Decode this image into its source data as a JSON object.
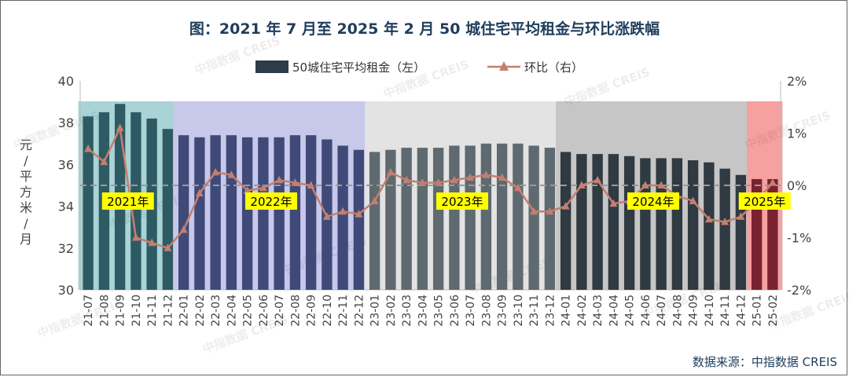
{
  "chart_data": {
    "type": "bar+line",
    "title": "图：2021 年 7 月至 2025 年 2 月 50 城住宅平均租金与环比涨跌幅",
    "source": "数据来源：中指数据 CREIS",
    "watermark": "中指数据 CREIS",
    "ylabel_left": "元/平方米/月",
    "ylim_left": [
      30,
      40
    ],
    "yticks_left": [
      "30",
      "32",
      "34",
      "36",
      "38",
      "40"
    ],
    "ylim_right": [
      -2,
      2
    ],
    "yticks_right": [
      "-2%",
      "-1%",
      "0%",
      "1%",
      "2%"
    ],
    "legend": {
      "position": "top-center"
    },
    "categories": [
      "21-07",
      "21-08",
      "21-09",
      "21-10",
      "21-11",
      "21-12",
      "22-01",
      "22-02",
      "22-03",
      "22-04",
      "22-05",
      "22-06",
      "22-07",
      "22-08",
      "22-09",
      "22-10",
      "22-11",
      "22-12",
      "23-01",
      "23-02",
      "23-03",
      "23-04",
      "23-05",
      "23-06",
      "23-07",
      "23-08",
      "23-09",
      "23-10",
      "23-11",
      "23-12",
      "24-01",
      "24-02",
      "24-03",
      "24-04",
      "24-05",
      "24-06",
      "24-07",
      "24-08",
      "24-09",
      "24-10",
      "24-11",
      "24-12",
      "25-01",
      "25-02"
    ],
    "series": [
      {
        "name": "50城住宅平均租金（左）",
        "type": "bar",
        "axis": "left",
        "values": [
          38.3,
          38.5,
          38.9,
          38.5,
          38.2,
          37.7,
          37.4,
          37.3,
          37.4,
          37.4,
          37.3,
          37.3,
          37.3,
          37.4,
          37.4,
          37.2,
          36.9,
          36.7,
          36.6,
          36.7,
          36.8,
          36.8,
          36.8,
          36.9,
          36.9,
          37.0,
          37.0,
          37.0,
          36.9,
          36.8,
          36.6,
          36.5,
          36.5,
          36.5,
          36.4,
          36.3,
          36.3,
          36.3,
          36.2,
          36.1,
          35.8,
          35.5,
          35.3,
          35.3
        ]
      },
      {
        "name": "环比（右）",
        "type": "line",
        "axis": "right",
        "color": "#c47f6e",
        "values": [
          0.7,
          0.45,
          1.1,
          -1.0,
          -1.1,
          -1.2,
          -0.85,
          -0.15,
          0.25,
          0.2,
          -0.1,
          -0.05,
          0.1,
          0.05,
          0.0,
          -0.6,
          -0.5,
          -0.55,
          -0.3,
          0.25,
          0.1,
          0.05,
          0.05,
          0.1,
          0.15,
          0.2,
          0.15,
          -0.05,
          -0.5,
          -0.5,
          -0.4,
          0.0,
          0.1,
          -0.35,
          -0.3,
          0.0,
          0.0,
          -0.2,
          -0.3,
          -0.65,
          -0.7,
          -0.6,
          -0.3,
          0.05
        ]
      }
    ],
    "periods": [
      {
        "label": "2021年",
        "start": 0,
        "end": 5,
        "band_color": "#a9d3d6",
        "bar_color": "#2e5b63"
      },
      {
        "label": "2022年",
        "start": 6,
        "end": 17,
        "band_color": "#c7c8ea",
        "bar_color": "#3f4a78"
      },
      {
        "label": "2023年",
        "start": 18,
        "end": 29,
        "band_color": "#e3e3e3",
        "bar_color": "#5e6a70"
      },
      {
        "label": "2024年",
        "start": 30,
        "end": 41,
        "band_color": "#c6c6c6",
        "bar_color": "#2f3a42"
      },
      {
        "label": "2025年",
        "start": 42,
        "end": 43,
        "band_color": "#f7a0a0",
        "bar_color": "#7b2231"
      }
    ],
    "legend_bar_color": "#2f3a4a",
    "label_bg": "#ffff00",
    "zero_line_color": "#9a9a9a"
  }
}
